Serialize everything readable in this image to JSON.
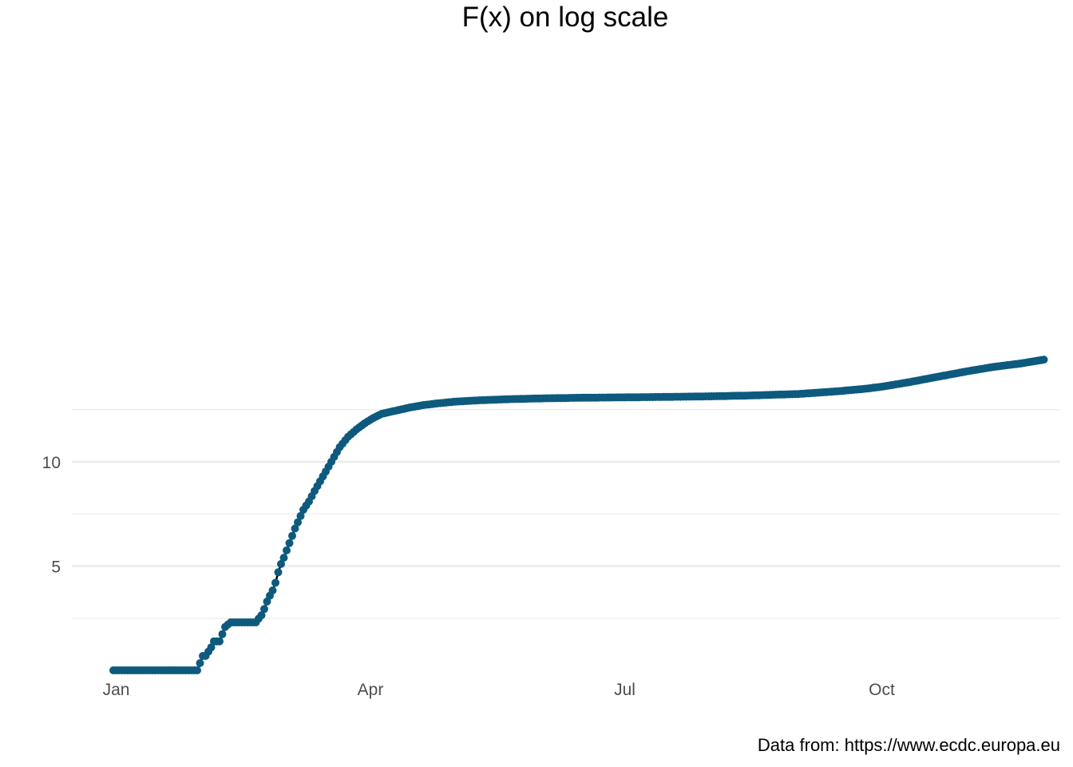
{
  "chart_data": {
    "type": "line",
    "title": "F(x) on log scale",
    "caption": "Data from: https://www.ecdc.europa.eu",
    "xlabel": "",
    "ylabel": "",
    "x_axis": {
      "kind": "date",
      "tick_labels": [
        "Jan",
        "Apr",
        "Jul",
        "Oct"
      ],
      "tick_dates": [
        "2020-01-01",
        "2020-04-01",
        "2020-07-01",
        "2020-10-01"
      ]
    },
    "y_axis": {
      "scale": "log",
      "ylim": [
        0,
        15.4
      ],
      "major_ticks": [
        5,
        10
      ],
      "minor_ticks": [
        2.5,
        7.5,
        12.5
      ]
    },
    "grid": true,
    "legend": "none",
    "colors": {
      "points": "#0d5a7e",
      "line": "#000000",
      "grid": "#ebebeb"
    },
    "series": [
      {
        "x": [
          "2019-12-31",
          "2020-01-10",
          "2020-01-20",
          "2020-01-30",
          "2020-02-01",
          "2020-02-02",
          "2020-02-04",
          "2020-02-05",
          "2020-02-07",
          "2020-02-09",
          "2020-02-10",
          "2020-02-11",
          "2020-02-15",
          "2020-02-20",
          "2020-02-21",
          "2020-02-22",
          "2020-02-23",
          "2020-02-24",
          "2020-02-25",
          "2020-02-26",
          "2020-02-27",
          "2020-02-28",
          "2020-02-29",
          "2020-03-01",
          "2020-03-02",
          "2020-03-03",
          "2020-03-05",
          "2020-03-07",
          "2020-03-08",
          "2020-03-10",
          "2020-03-12",
          "2020-03-15",
          "2020-03-18",
          "2020-03-21",
          "2020-03-24",
          "2020-03-27",
          "2020-03-30",
          "2020-04-02",
          "2020-04-05",
          "2020-04-10",
          "2020-04-15",
          "2020-04-20",
          "2020-04-25",
          "2020-05-01",
          "2020-05-10",
          "2020-05-20",
          "2020-06-01",
          "2020-06-15",
          "2020-07-01",
          "2020-07-15",
          "2020-08-01",
          "2020-08-15",
          "2020-09-01",
          "2020-09-15",
          "2020-09-25",
          "2020-10-01",
          "2020-10-10",
          "2020-10-20",
          "2020-11-01",
          "2020-11-10",
          "2020-11-20",
          "2020-11-28"
        ],
        "y": [
          0.0,
          0.0,
          0.0,
          0.0,
          0.69,
          0.69,
          1.1,
          1.39,
          1.39,
          2.08,
          2.2,
          2.3,
          2.3,
          2.3,
          2.48,
          2.64,
          2.94,
          3.3,
          3.58,
          3.83,
          4.2,
          4.7,
          5.1,
          5.4,
          5.75,
          6.1,
          6.8,
          7.4,
          7.7,
          8.1,
          8.6,
          9.3,
          10.0,
          10.7,
          11.2,
          11.55,
          11.85,
          12.1,
          12.3,
          12.45,
          12.6,
          12.72,
          12.8,
          12.88,
          12.95,
          13.0,
          13.04,
          13.07,
          13.09,
          13.11,
          13.14,
          13.18,
          13.25,
          13.38,
          13.5,
          13.6,
          13.8,
          14.05,
          14.35,
          14.55,
          14.72,
          14.9
        ]
      }
    ]
  }
}
